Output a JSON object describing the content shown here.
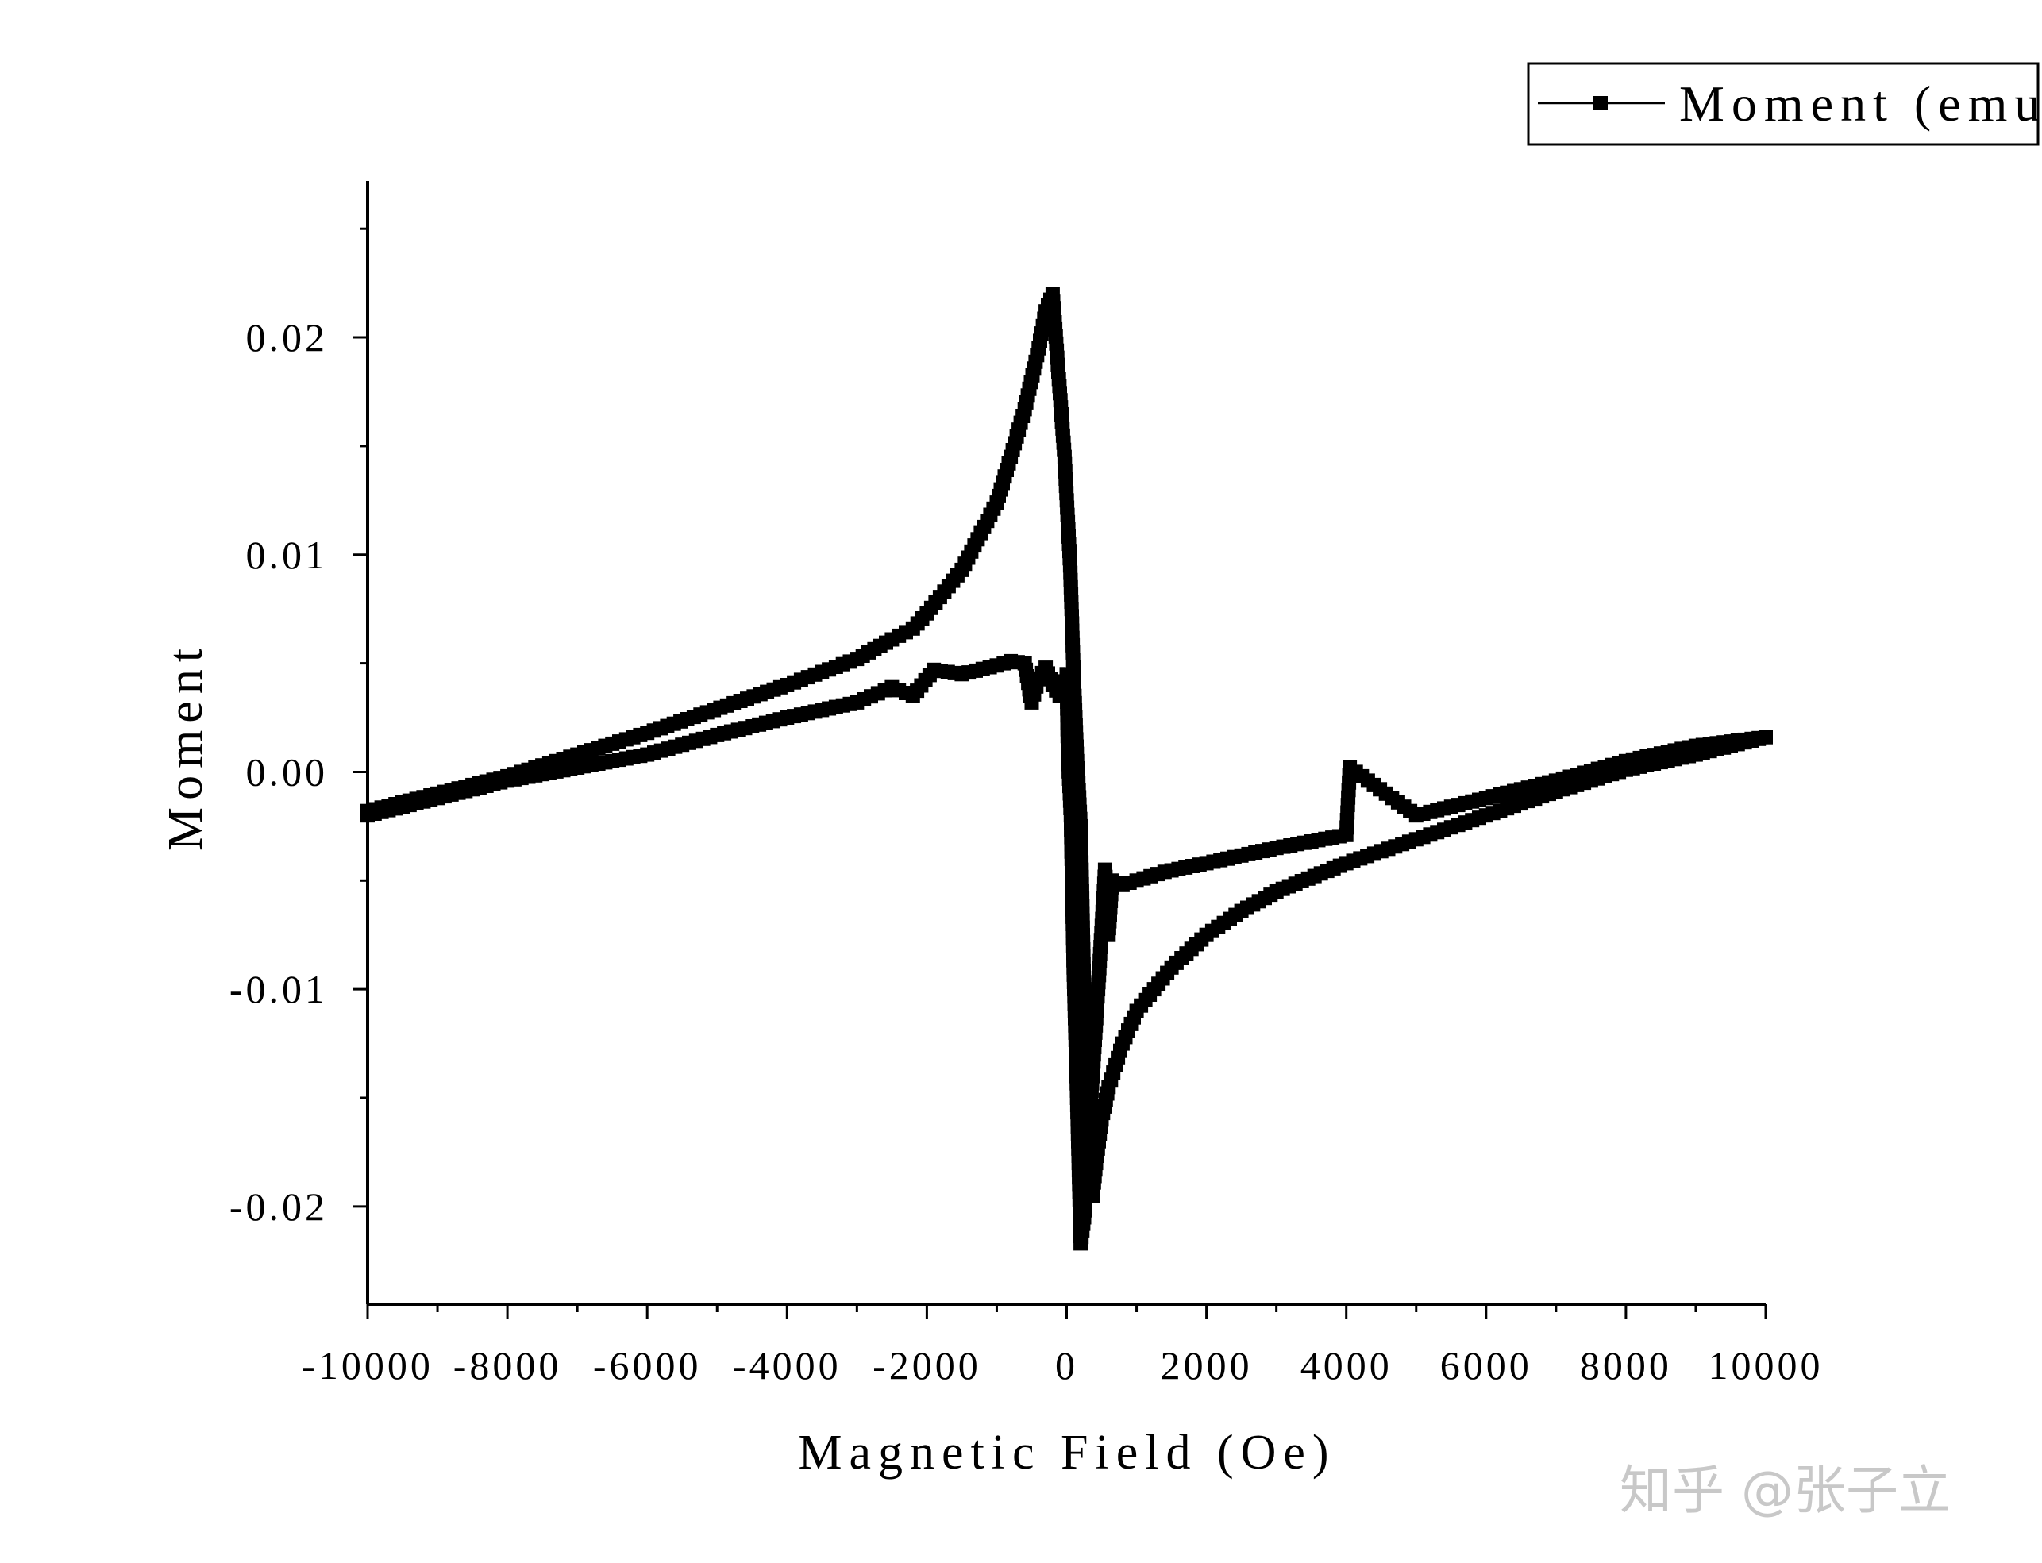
{
  "chart_data": {
    "type": "scatter",
    "xlabel": "Magnetic Field (Oe)",
    "ylabel": "Moment",
    "xlim": [
      -10000,
      10000
    ],
    "ylim": [
      -0.0245,
      0.0272
    ],
    "xticks": [
      -10000,
      -8000,
      -6000,
      -4000,
      -2000,
      0,
      2000,
      4000,
      6000,
      8000,
      10000
    ],
    "xtick_labels": [
      "-10000",
      "-8000",
      "-6000",
      "-4000",
      "-2000",
      "0",
      "2000",
      "4000",
      "6000",
      "8000",
      "10000"
    ],
    "yticks": [
      -0.02,
      -0.01,
      0.0,
      0.01,
      0.02
    ],
    "ytick_labels": [
      "-0.02",
      "-0.01",
      "0.00",
      "0.01",
      "0.02"
    ],
    "grid": false,
    "legend": {
      "position": "top-right"
    },
    "series": [
      {
        "name": "Moment (emu)",
        "color": "#000000",
        "marker": "square",
        "points": [
          [
            -10000,
            -0.0018
          ],
          [
            -8000,
            -0.0002
          ],
          [
            -6000,
            0.0018
          ],
          [
            -4000,
            0.004
          ],
          [
            -3000,
            0.0052
          ],
          [
            -2500,
            0.0061
          ],
          [
            -2200,
            0.0066
          ],
          [
            -2000,
            0.0073
          ],
          [
            -1500,
            0.0093
          ],
          [
            -1000,
            0.0124
          ],
          [
            -800,
            0.0145
          ],
          [
            -600,
            0.0167
          ],
          [
            -400,
            0.0195
          ],
          [
            -300,
            0.0212
          ],
          [
            -200,
            0.022
          ],
          [
            -30,
            0.0145
          ],
          [
            50,
            0.0095
          ],
          [
            100,
            0.0045
          ],
          [
            150,
            0.0005
          ],
          [
            200,
            -0.0025
          ],
          [
            240,
            -0.0085
          ],
          [
            280,
            -0.015
          ],
          [
            320,
            -0.0185
          ],
          [
            370,
            -0.0195
          ],
          [
            420,
            -0.018
          ],
          [
            500,
            -0.016
          ],
          [
            600,
            -0.0145
          ],
          [
            800,
            -0.0125
          ],
          [
            1000,
            -0.011
          ],
          [
            1500,
            -0.009
          ],
          [
            2000,
            -0.0075
          ],
          [
            2500,
            -0.0064
          ],
          [
            3000,
            -0.0055
          ],
          [
            4000,
            -0.0042
          ],
          [
            5000,
            -0.0031
          ],
          [
            6000,
            -0.002
          ],
          [
            7000,
            -0.0009
          ],
          [
            8000,
            0.0001
          ],
          [
            9000,
            0.0008
          ],
          [
            10000,
            0.0016
          ],
          [
            9000,
            0.0012
          ],
          [
            8000,
            0.0005
          ],
          [
            7000,
            -0.0004
          ],
          [
            6000,
            -0.0012
          ],
          [
            5000,
            -0.002
          ],
          [
            4050,
            0.0002
          ],
          [
            4000,
            -0.0029
          ],
          [
            3000,
            -0.0035
          ],
          [
            2000,
            -0.0042
          ],
          [
            1400,
            -0.0046
          ],
          [
            1000,
            -0.005
          ],
          [
            800,
            -0.0052
          ],
          [
            650,
            -0.005
          ],
          [
            600,
            -0.0075
          ],
          [
            550,
            -0.0045
          ],
          [
            450,
            -0.01
          ],
          [
            350,
            -0.015
          ],
          [
            250,
            -0.0205
          ],
          [
            200,
            -0.0217
          ],
          [
            180,
            -0.019
          ],
          [
            150,
            -0.015
          ],
          [
            100,
            -0.009
          ],
          [
            60,
            -0.002
          ],
          [
            20,
            0.0007
          ],
          [
            0,
            0.0045
          ],
          [
            -100,
            0.0035
          ],
          [
            -200,
            0.004
          ],
          [
            -300,
            0.0048
          ],
          [
            -400,
            0.0043
          ],
          [
            -500,
            0.0032
          ],
          [
            -600,
            0.005
          ],
          [
            -800,
            0.0051
          ],
          [
            -1000,
            0.0049
          ],
          [
            -1500,
            0.0045
          ],
          [
            -1900,
            0.0047
          ],
          [
            -2200,
            0.0035
          ],
          [
            -2500,
            0.0039
          ],
          [
            -3000,
            0.0032
          ],
          [
            -4000,
            0.0025
          ],
          [
            -5000,
            0.0017
          ],
          [
            -6000,
            0.0008
          ],
          [
            -8000,
            -0.0004
          ],
          [
            -10000,
            -0.002
          ]
        ]
      }
    ]
  },
  "watermark": "知乎 @张子立"
}
